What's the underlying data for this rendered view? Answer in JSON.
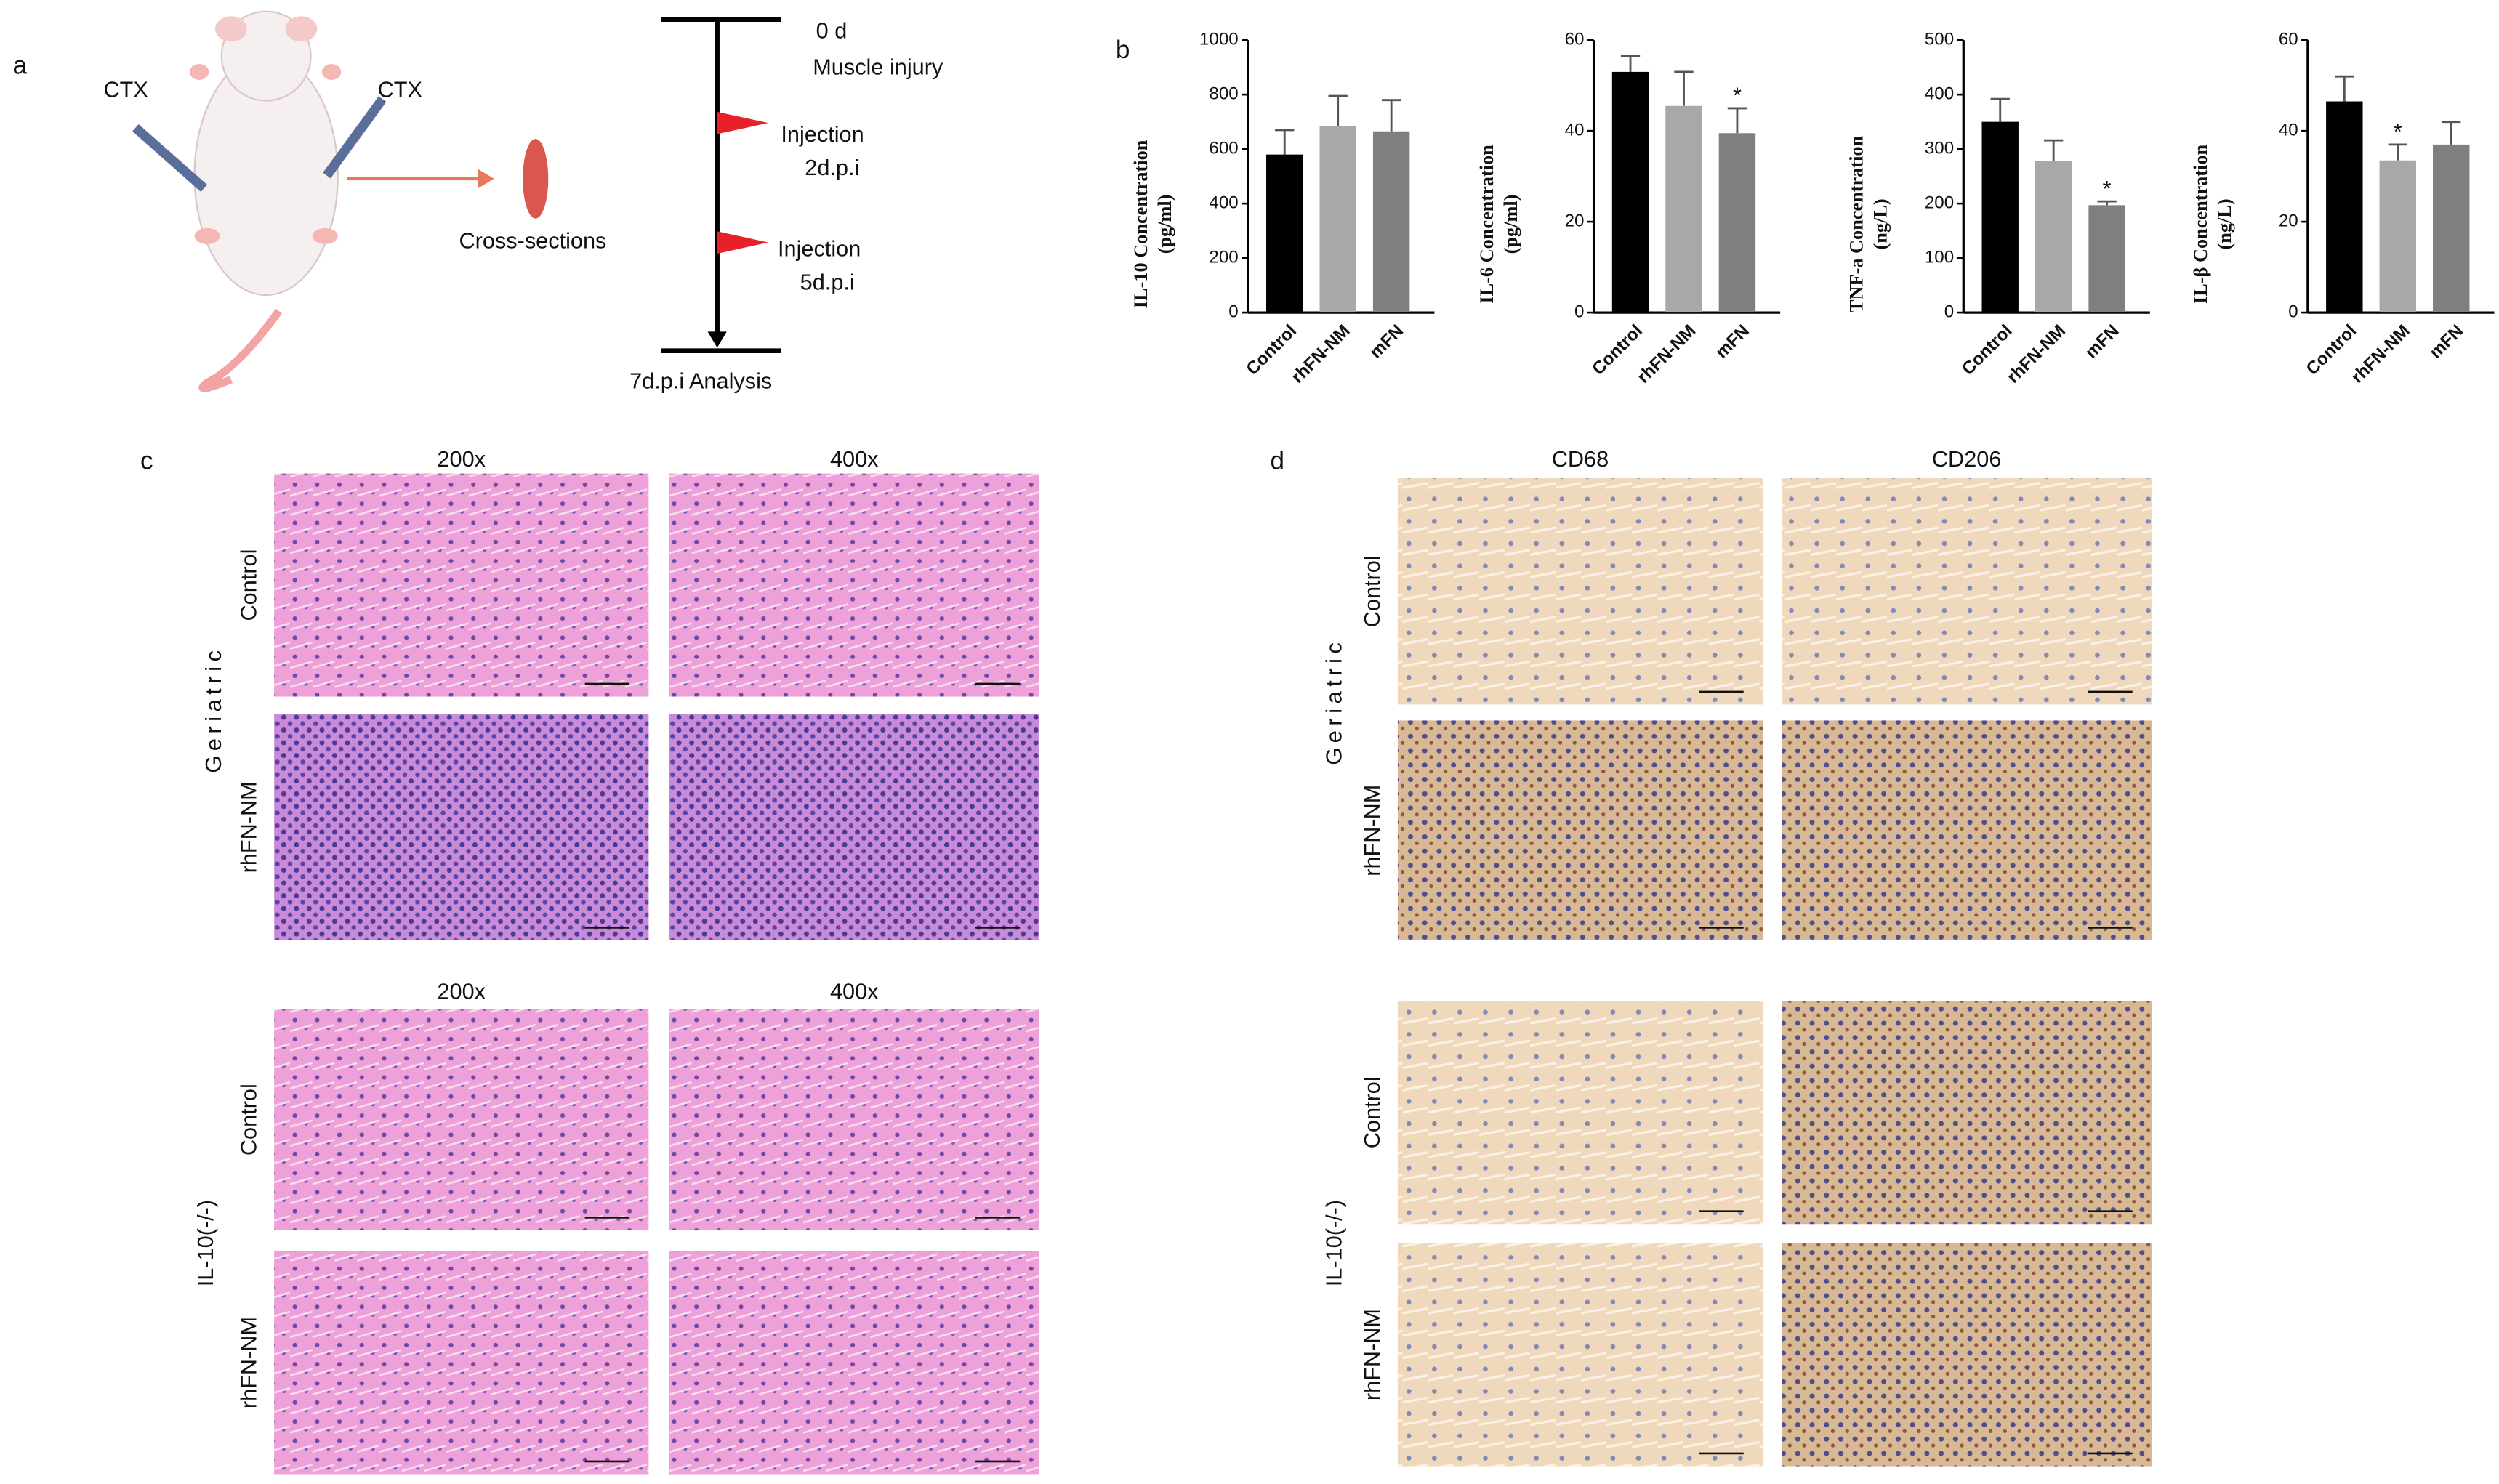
{
  "panel_labels": [
    "a",
    "b",
    "c",
    "d"
  ],
  "schematic": {
    "injections": [
      "CTX",
      "CTX"
    ],
    "output": "Cross-sections"
  },
  "timeline": {
    "events": [
      {
        "time": "0 d",
        "label": "Muscle injury"
      },
      {
        "label": "Injection",
        "time": "2d.p.i"
      },
      {
        "label": "Injection",
        "time": "5d.p.i"
      }
    ],
    "end": "7d.p.i Analysis"
  },
  "chart_data": [
    {
      "type": "bar",
      "ylabel": [
        "IL-10 Concentration",
        "(pg/ml)"
      ],
      "categories": [
        "Control",
        "rhFN-NM",
        "mFN"
      ],
      "values": [
        580,
        685,
        665
      ],
      "errors": [
        90,
        110,
        115
      ],
      "annotations": [
        null,
        null,
        null
      ],
      "colors": [
        "#000000",
        "#a8a8a8",
        "#7f7f7f"
      ],
      "ylim": [
        0,
        1000
      ],
      "yticks": [
        0,
        200,
        400,
        600,
        800,
        1000
      ]
    },
    {
      "type": "bar",
      "ylabel": [
        "IL-6 Concentration",
        "(pg/ml)"
      ],
      "categories": [
        "Control",
        "rhFN-NM",
        "mFN"
      ],
      "values": [
        53,
        45.5,
        39.5
      ],
      "errors": [
        3.5,
        7.5,
        5.5
      ],
      "annotations": [
        null,
        null,
        "*"
      ],
      "colors": [
        "#000000",
        "#a8a8a8",
        "#7f7f7f"
      ],
      "ylim": [
        0,
        60
      ],
      "yticks": [
        0,
        20,
        40,
        60
      ]
    },
    {
      "type": "bar",
      "ylabel": [
        "TNF-a Concentration",
        "(ng/L)"
      ],
      "categories": [
        "Control",
        "rhFN-NM",
        "mFN"
      ],
      "values": [
        350,
        278,
        197
      ],
      "errors": [
        42,
        38,
        7
      ],
      "annotations": [
        null,
        null,
        "*"
      ],
      "colors": [
        "#000000",
        "#a8a8a8",
        "#7f7f7f"
      ],
      "ylim": [
        0,
        500
      ],
      "yticks": [
        0,
        100,
        200,
        300,
        400,
        500
      ]
    },
    {
      "type": "bar",
      "ylabel": [
        "IL-β Concentration",
        "(ng/L)"
      ],
      "categories": [
        "Control",
        "rhFN-NM",
        "mFN"
      ],
      "values": [
        46.5,
        33.5,
        37
      ],
      "errors": [
        5.5,
        3.5,
        5
      ],
      "annotations": [
        null,
        "*",
        null
      ],
      "colors": [
        "#000000",
        "#a8a8a8",
        "#7f7f7f"
      ],
      "ylim": [
        0,
        60
      ],
      "yticks": [
        0,
        20,
        40,
        60
      ]
    }
  ],
  "he_panel": {
    "blocks": [
      {
        "group": "Geriatric",
        "columns": [
          "200x",
          "400x"
        ],
        "rows": [
          "Control",
          "rhFN-NM"
        ]
      },
      {
        "group": "IL-10(-/-)",
        "columns": [
          "200x",
          "400x"
        ],
        "rows": [
          "Control",
          "rhFN-NM"
        ]
      }
    ]
  },
  "ihc_panel": {
    "columns": [
      "CD68",
      "CD206"
    ],
    "blocks": [
      {
        "group": "Geriatric",
        "rows": [
          "Control",
          "rhFN-NM"
        ]
      },
      {
        "group": "IL-10(-/-)",
        "rows": [
          "Control",
          "rhFN-NM"
        ]
      }
    ]
  }
}
